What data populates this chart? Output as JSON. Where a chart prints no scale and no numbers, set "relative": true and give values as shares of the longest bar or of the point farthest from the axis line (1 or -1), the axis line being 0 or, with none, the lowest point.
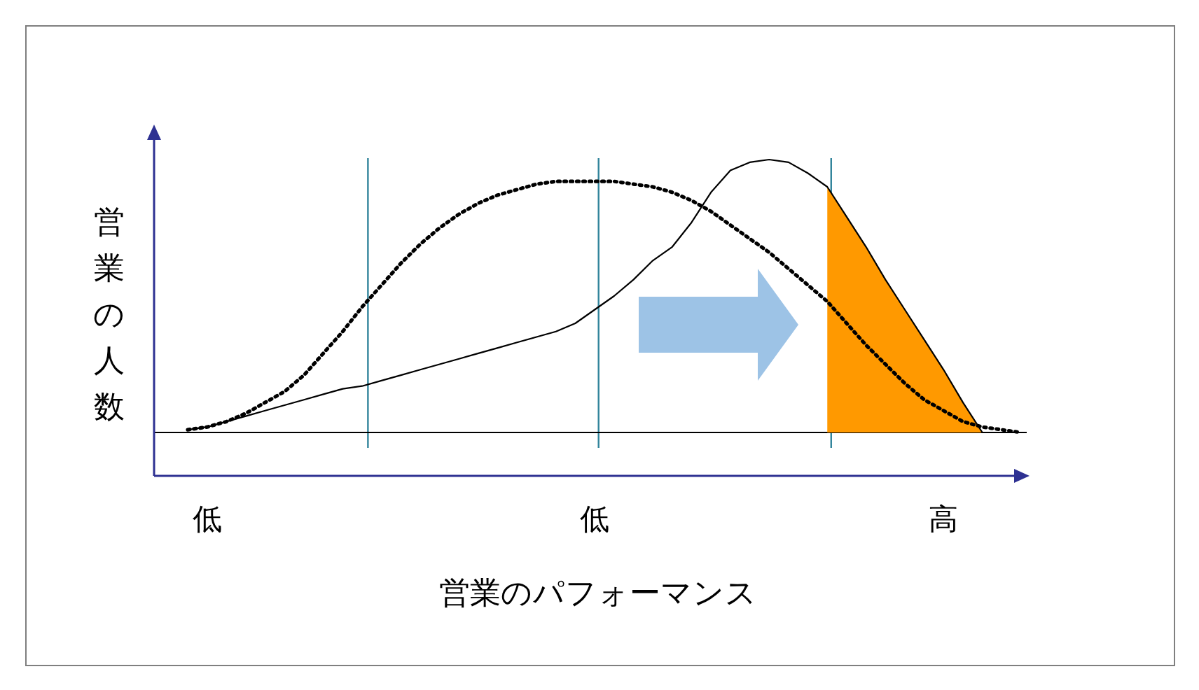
{
  "chart_data": {
    "type": "line",
    "relative": true,
    "xlabel": "営業のパフォーマンス",
    "ylabel": "営業の人数",
    "categories": [
      null,
      "低",
      null,
      null,
      null,
      null,
      null,
      null,
      null,
      null,
      null,
      null,
      null,
      null,
      null,
      null,
      null,
      null,
      null,
      null,
      null,
      "低",
      null,
      null,
      null,
      null,
      null,
      null,
      null,
      null,
      null,
      null,
      null,
      null,
      null,
      null,
      null,
      null,
      null,
      "高",
      null,
      null,
      null,
      null
    ],
    "series": [
      {
        "type": "area",
        "color": "#ff9900",
        "values": [
          null,
          null,
          null,
          null,
          null,
          null,
          null,
          null,
          null,
          null,
          null,
          null,
          null,
          null,
          null,
          null,
          null,
          null,
          null,
          null,
          null,
          null,
          null,
          null,
          null,
          null,
          null,
          null,
          null,
          null,
          null,
          null,
          null,
          0.9,
          0.79,
          0.68,
          0.56,
          0.45,
          0.34,
          0.23,
          0.11,
          0.0,
          null,
          null
        ]
      },
      {
        "color": "#000000",
        "line_style": "solid",
        "values": [
          0.01,
          0.02,
          0.04,
          0.06,
          0.08,
          0.1,
          0.12,
          0.14,
          0.16,
          0.17,
          0.19,
          0.21,
          0.23,
          0.25,
          0.27,
          0.29,
          0.31,
          0.33,
          0.35,
          0.37,
          0.4,
          0.45,
          0.5,
          0.56,
          0.63,
          0.68,
          0.77,
          0.88,
          0.96,
          0.99,
          1.0,
          0.99,
          0.95,
          0.9,
          0.79,
          0.68,
          0.56,
          0.45,
          0.34,
          0.23,
          0.11,
          0.0,
          0.0,
          0.0
        ]
      },
      {
        "color": "#000000",
        "line_style": "dotted",
        "values": [
          0.01,
          0.02,
          0.04,
          0.07,
          0.11,
          0.15,
          0.21,
          0.29,
          0.37,
          0.46,
          0.54,
          0.62,
          0.69,
          0.75,
          0.8,
          0.84,
          0.87,
          0.89,
          0.91,
          0.92,
          0.92,
          0.92,
          0.92,
          0.91,
          0.9,
          0.88,
          0.85,
          0.81,
          0.76,
          0.71,
          0.66,
          0.6,
          0.54,
          0.48,
          0.4,
          0.32,
          0.25,
          0.18,
          0.12,
          0.08,
          0.04,
          0.02,
          0.01,
          0.0
        ]
      }
    ]
  }
}
